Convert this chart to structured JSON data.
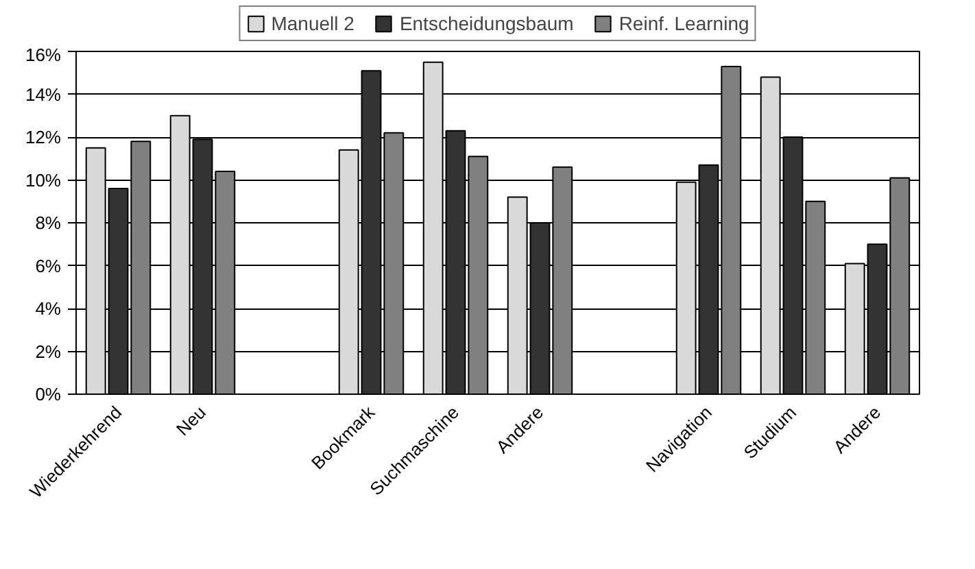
{
  "chart_data": {
    "type": "bar",
    "categories": [
      "Wiederkehrend",
      "Neu",
      null,
      "Bookmark",
      "Suchmaschine",
      "Andere",
      null,
      "Navigation",
      "Studium",
      "Andere"
    ],
    "series": [
      {
        "name": "Manuell 2",
        "color": "#d9d9d9",
        "values": [
          11.5,
          13.0,
          null,
          11.4,
          15.5,
          9.2,
          null,
          9.9,
          14.8,
          6.1
        ]
      },
      {
        "name": "Entscheidungsbaum",
        "color": "#333333",
        "values": [
          9.6,
          11.9,
          null,
          15.1,
          12.3,
          8.0,
          null,
          10.7,
          12.0,
          7.0
        ]
      },
      {
        "name": "Reinf. Learning",
        "color": "#808080",
        "values": [
          11.8,
          10.4,
          null,
          12.2,
          11.1,
          10.6,
          null,
          15.3,
          9.0,
          10.1
        ]
      }
    ],
    "ylim": [
      0,
      16
    ],
    "yticks": [
      {
        "value": 0,
        "label": "0%"
      },
      {
        "value": 2,
        "label": "2%"
      },
      {
        "value": 4,
        "label": "4%"
      },
      {
        "value": 6,
        "label": "6%"
      },
      {
        "value": 8,
        "label": "8%"
      },
      {
        "value": 10,
        "label": "10%"
      },
      {
        "value": 12,
        "label": "12%"
      },
      {
        "value": 14,
        "label": "14%"
      },
      {
        "value": 16,
        "label": "16%"
      }
    ],
    "grid": "y",
    "legend": "top"
  }
}
